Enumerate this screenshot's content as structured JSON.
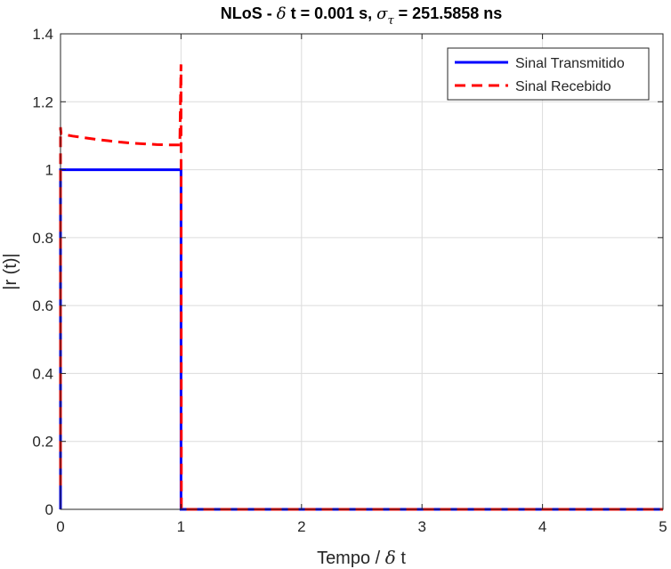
{
  "chart_data": {
    "type": "line",
    "title": {
      "prefix": "NLoS - ",
      "delta": "δ",
      "mid": " t = 0.001 s, ",
      "sigma": "σ",
      "sub": "τ",
      "suffix": " = 251.5858 ns"
    },
    "xlabel": {
      "prefix": "Tempo / ",
      "delta": "δ",
      "suffix": " t"
    },
    "ylabel": "|r (t)|",
    "xlim": [
      0,
      5
    ],
    "ylim": [
      0,
      1.4
    ],
    "xticks": [
      0,
      1,
      2,
      3,
      4,
      5
    ],
    "yticks": [
      0,
      0.2,
      0.4,
      0.6,
      0.8,
      1,
      1.2,
      1.4
    ],
    "grid": true,
    "legend_position": "top-right",
    "series": [
      {
        "name": "Sinal Transmitido",
        "style": "solid",
        "color": "#0000ff",
        "points": [
          [
            0,
            0
          ],
          [
            0,
            1
          ],
          [
            1,
            1
          ],
          [
            1,
            0
          ],
          [
            5,
            0
          ]
        ]
      },
      {
        "name": "Sinal Recebido",
        "style": "dashed",
        "color": "#ff0000",
        "points": [
          [
            0,
            0.07
          ],
          [
            0,
            1.125
          ],
          [
            0.005,
            1.105
          ],
          [
            0.1,
            1.099
          ],
          [
            0.2,
            1.094
          ],
          [
            0.3,
            1.089
          ],
          [
            0.4,
            1.085
          ],
          [
            0.5,
            1.081
          ],
          [
            0.6,
            1.078
          ],
          [
            0.7,
            1.076
          ],
          [
            0.8,
            1.074
          ],
          [
            0.9,
            1.073
          ],
          [
            0.99,
            1.073
          ],
          [
            1,
            1.31
          ],
          [
            1.003,
            0
          ],
          [
            5,
            0
          ]
        ]
      }
    ]
  }
}
